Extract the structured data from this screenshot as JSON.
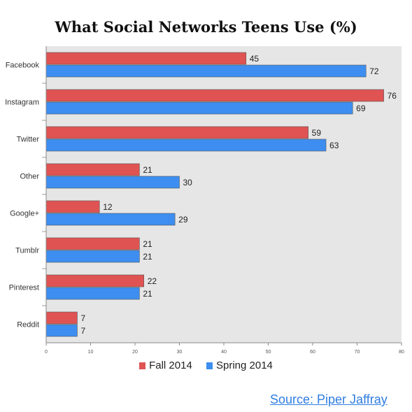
{
  "chart_data": {
    "type": "bar",
    "orientation": "horizontal",
    "title": "What Social Networks Teens Use (%)",
    "categories": [
      "Facebook",
      "Instagram",
      "Twitter",
      "Other",
      "Google+",
      "Tumblr",
      "Pinterest",
      "Reddit"
    ],
    "series": [
      {
        "name": "Fall 2014",
        "color": "#e05353",
        "values": [
          45,
          76,
          59,
          21,
          12,
          21,
          22,
          7
        ]
      },
      {
        "name": "Spring 2014",
        "color": "#3d8ef0",
        "values": [
          72,
          69,
          63,
          30,
          29,
          21,
          21,
          7
        ]
      }
    ],
    "xticks": [
      0,
      10,
      20,
      30,
      40,
      50,
      60,
      70,
      80
    ],
    "xlim": [
      0,
      80
    ],
    "grid": false,
    "background_color": "#e6e6e6",
    "legend_position": "bottom"
  },
  "source": {
    "label": "Source: Piper Jaffray"
  }
}
